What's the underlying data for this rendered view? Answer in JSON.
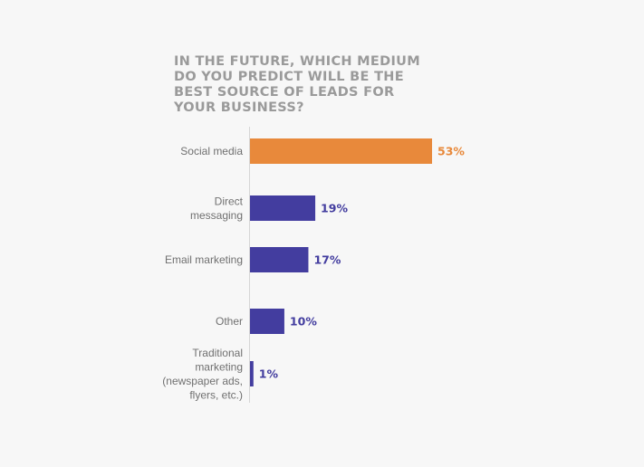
{
  "chart_data": {
    "type": "bar",
    "orientation": "horizontal",
    "title": "IN THE FUTURE, WHICH MEDIUM\nDO YOU PREDICT WILL BE THE\nBEST SOURCE OF LEADS FOR\nYOUR BUSINESS?",
    "categories": [
      [
        "Social media"
      ],
      [
        "Direct",
        "messaging"
      ],
      [
        "Email marketing"
      ],
      [
        "Other"
      ],
      [
        "Traditional",
        "marketing",
        "(newspaper ads,",
        "flyers, etc.)"
      ]
    ],
    "values": [
      53,
      19,
      17,
      10,
      1
    ],
    "value_labels": [
      "53%",
      "19%",
      "17%",
      "10%",
      "1%"
    ],
    "xlim": [
      0,
      100
    ],
    "grid": false,
    "colors": {
      "highlight": "#e8893b",
      "default": "#433d9f",
      "axis": "#d6d6d6"
    },
    "highlight_index": 0
  }
}
